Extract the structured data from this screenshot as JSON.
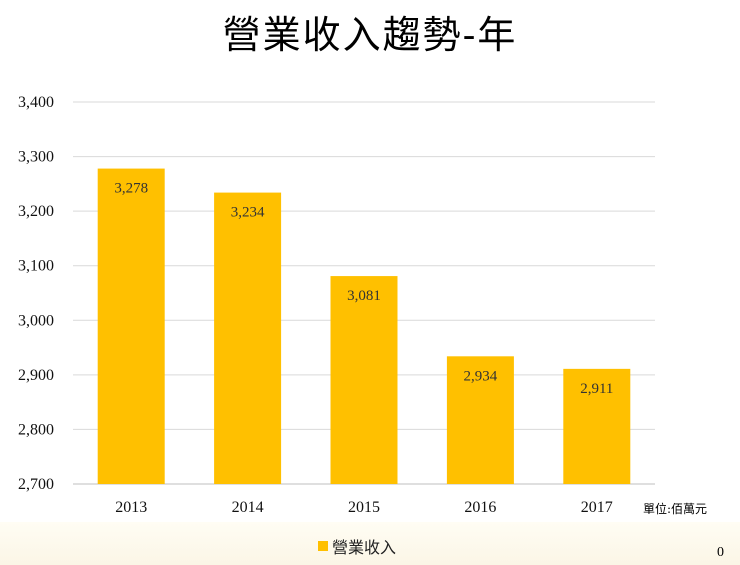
{
  "slide": {
    "title": "營業收入趨勢-年",
    "unit_note": "單位:佰萬元",
    "page_number": "0"
  },
  "chart_data": {
    "type": "bar",
    "categories": [
      "2013",
      "2014",
      "2015",
      "2016",
      "2017"
    ],
    "series": [
      {
        "name": "營業收入",
        "values": [
          3278,
          3234,
          3081,
          2934,
          2911
        ],
        "color": "#FFC000"
      }
    ],
    "data_labels": [
      "3,278",
      "3,234",
      "3,081",
      "2,934",
      "2,911"
    ],
    "y_ticks": [
      "2,700",
      "2,800",
      "2,900",
      "3,000",
      "3,100",
      "3,200",
      "3,300",
      "3,400"
    ],
    "ylim": [
      2700,
      3400
    ],
    "y_step": 100,
    "grid": true,
    "legend_position": "bottom",
    "gridline_color": "#d9d9d9"
  }
}
